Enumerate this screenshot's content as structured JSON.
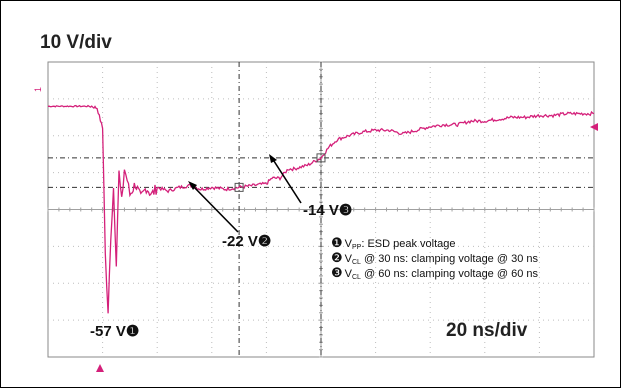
{
  "vertical_scale": "10 V/div",
  "horizontal_scale": "20 ns/div",
  "channel_label": "1",
  "colors": {
    "trace": "#d4207a",
    "grid": "#bdbdbd",
    "cursor": "#333333",
    "marker": "#d4207a"
  },
  "annotations": [
    {
      "text": "-57 V",
      "marker": "❶"
    },
    {
      "text": "-22 V",
      "marker": "❷"
    },
    {
      "text": "-14 V",
      "marker": "❸"
    }
  ],
  "legend": [
    {
      "marker": "❶",
      "symbol": "V",
      "sub": "PP",
      "text": ": ESD peak voltage"
    },
    {
      "marker": "❷",
      "symbol": "V",
      "sub": "CL",
      "text": " @ 30 ns: clamping voltage @ 30 ns"
    },
    {
      "marker": "❸",
      "symbol": "V",
      "sub": "CL",
      "text": " @ 60 ns: clamping voltage @ 60 ns"
    }
  ],
  "chart_data": {
    "type": "line",
    "title": "",
    "xlabel": "",
    "ylabel": "",
    "xunit": "ns",
    "yunit": "V",
    "xlim": [
      -40,
      160
    ],
    "ylim": [
      -68,
      12
    ],
    "grid": true,
    "series": [
      {
        "x": [
          -40,
          -24,
          -22,
          -20,
          -19,
          -18,
          -17,
          -16,
          -15,
          -14,
          -13,
          -12,
          -11,
          -10,
          -8,
          -6,
          -4,
          -2,
          0,
          4,
          8,
          12,
          16,
          20,
          25,
          30,
          35,
          40,
          42,
          45,
          48,
          50,
          55,
          60,
          63,
          66,
          70,
          75,
          80,
          85,
          90,
          95,
          100,
          105,
          110,
          115,
          120,
          125,
          130,
          135,
          140,
          145,
          150,
          155,
          160
        ],
        "y": [
          0,
          0,
          -0.5,
          -6,
          -40,
          -57,
          -35,
          -22,
          -42,
          -18,
          -26,
          -17,
          -20,
          -24,
          -21,
          -25,
          -22,
          -24,
          -22,
          -23,
          -22,
          -21.5,
          -22.5,
          -22,
          -22.5,
          -22,
          -21.5,
          -21,
          -19.5,
          -19.5,
          -17,
          -17,
          -16,
          -14,
          -11,
          -9,
          -8,
          -7,
          -6.5,
          -6.5,
          -7.5,
          -6.5,
          -5.5,
          -5,
          -5,
          -4,
          -4,
          -3.5,
          -3,
          -3,
          -2.5,
          -2.5,
          -2,
          -2,
          -2
        ]
      }
    ],
    "markers": [
      {
        "label": "❶",
        "x": -18,
        "y": -57
      },
      {
        "label": "❷",
        "x": 30,
        "y": -22
      },
      {
        "label": "❸",
        "x": 60,
        "y": -14
      }
    ]
  }
}
